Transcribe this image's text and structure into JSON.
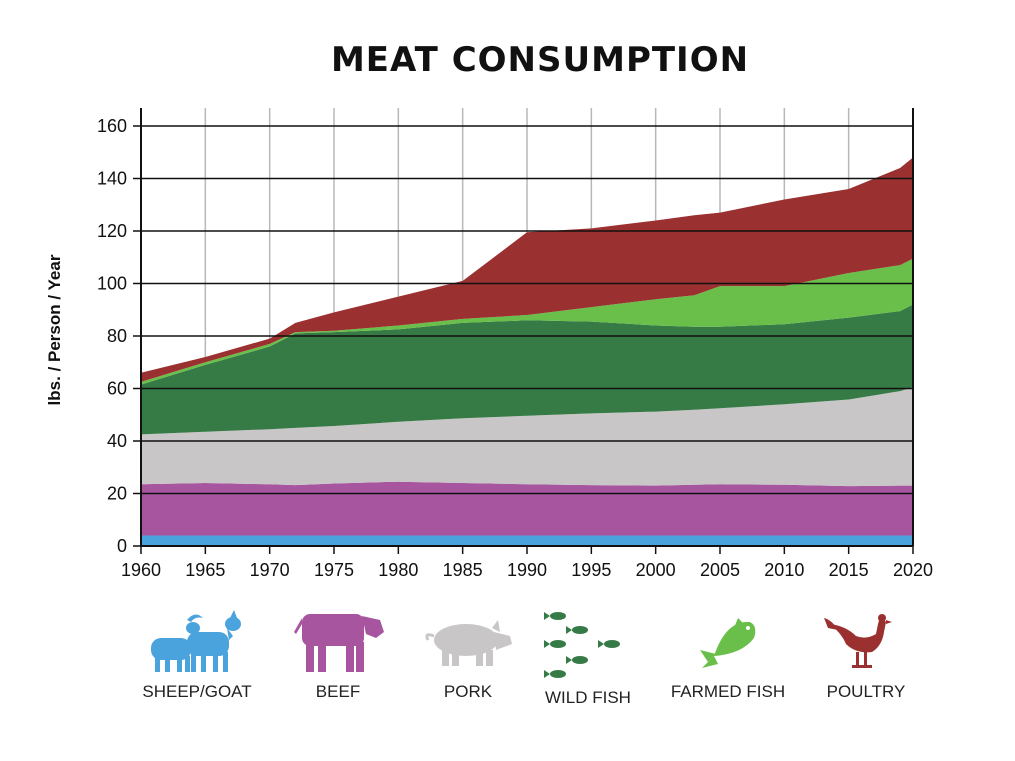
{
  "chart_data": {
    "type": "area",
    "stacked": true,
    "title": "MEAT CONSUMPTION",
    "ylabel": "lbs. / Person / Year",
    "xlabel": "",
    "xlim": [
      1960,
      2020
    ],
    "ylim": [
      0,
      165
    ],
    "x_ticks": [
      1960,
      1965,
      1970,
      1975,
      1980,
      1985,
      1990,
      1995,
      2000,
      2005,
      2010,
      2015,
      2020
    ],
    "y_ticks": [
      0,
      20,
      40,
      60,
      80,
      100,
      120,
      140,
      160
    ],
    "grid": true,
    "legend_placement": "bottom",
    "x": [
      1960,
      1965,
      1970,
      1972,
      1975,
      1980,
      1985,
      1990,
      1995,
      2000,
      2003,
      2005,
      2010,
      2015,
      2019,
      2020
    ],
    "cumulative": true,
    "series": [
      {
        "name": "SHEEP/GOAT",
        "color": "#4ba3dd",
        "values": [
          4,
          4,
          4,
          4,
          4,
          4,
          4,
          4,
          4,
          4,
          4,
          4,
          4,
          4,
          4,
          4
        ]
      },
      {
        "name": "BEEF",
        "color": "#a855a0",
        "values": [
          23.5,
          24,
          23.5,
          23.2,
          23.8,
          24.5,
          24,
          23.5,
          23.2,
          23,
          23.3,
          23.5,
          23.3,
          22.8,
          23,
          23
        ]
      },
      {
        "name": "PORK",
        "color": "#c8c6c7",
        "values": [
          42.5,
          43.5,
          44.5,
          45,
          45.7,
          47.3,
          48.7,
          49.6,
          50.5,
          51.2,
          51.9,
          52.5,
          54,
          55.8,
          59,
          60.5
        ]
      },
      {
        "name": "WILD FISH",
        "color": "#367a46",
        "values": [
          61.5,
          69,
          76,
          81,
          81.5,
          82.5,
          85,
          86,
          85.5,
          84,
          83.5,
          83.5,
          84.5,
          87,
          89.5,
          92
        ]
      },
      {
        "name": "FARMED FISH",
        "color": "#6abf4b",
        "values": [
          62.5,
          70,
          77,
          81.5,
          82,
          84,
          86.5,
          88,
          91,
          94,
          95.5,
          99,
          99,
          104,
          107,
          109.5
        ]
      },
      {
        "name": "POULTRY",
        "color": "#9b3030",
        "values": [
          66,
          72,
          79,
          85,
          89,
          95,
          101,
          119.5,
          121,
          124,
          126,
          127,
          132,
          136,
          144,
          148
        ]
      }
    ]
  },
  "legend": [
    {
      "label": "SHEEP/GOAT",
      "icon": "sheep-goat-icon",
      "color": "#4ba3dd"
    },
    {
      "label": "BEEF",
      "icon": "cow-icon",
      "color": "#a855a0"
    },
    {
      "label": "PORK",
      "icon": "pig-icon",
      "color": "#c8c6c7"
    },
    {
      "label": "WILD FISH",
      "icon": "fish-school-icon",
      "color": "#367a46"
    },
    {
      "label": "FARMED FISH",
      "icon": "fish-icon",
      "color": "#6abf4b"
    },
    {
      "label": "POULTRY",
      "icon": "chicken-icon",
      "color": "#9b3030"
    }
  ]
}
